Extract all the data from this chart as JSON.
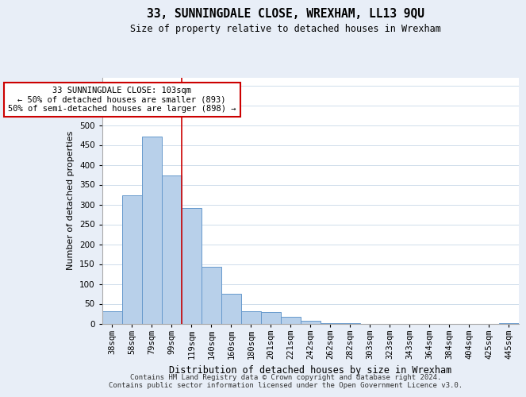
{
  "title": "33, SUNNINGDALE CLOSE, WREXHAM, LL13 9QU",
  "subtitle": "Size of property relative to detached houses in Wrexham",
  "xlabel": "Distribution of detached houses by size in Wrexham",
  "ylabel": "Number of detached properties",
  "bar_labels": [
    "38sqm",
    "58sqm",
    "79sqm",
    "99sqm",
    "119sqm",
    "140sqm",
    "160sqm",
    "180sqm",
    "201sqm",
    "221sqm",
    "242sqm",
    "262sqm",
    "282sqm",
    "303sqm",
    "323sqm",
    "343sqm",
    "364sqm",
    "384sqm",
    "404sqm",
    "425sqm",
    "445sqm"
  ],
  "bar_values": [
    32,
    323,
    472,
    373,
    292,
    144,
    75,
    31,
    29,
    17,
    7,
    2,
    1,
    0,
    0,
    0,
    0,
    0,
    0,
    0,
    2
  ],
  "bar_color": "#b8d0ea",
  "bar_edge_color": "#6699cc",
  "vline_x": 3.5,
  "vline_color": "#cc0000",
  "annotation_text": "33 SUNNINGDALE CLOSE: 103sqm\n← 50% of detached houses are smaller (893)\n50% of semi-detached houses are larger (898) →",
  "annotation_box_edge_color": "#cc0000",
  "ylim": [
    0,
    620
  ],
  "yticks": [
    0,
    50,
    100,
    150,
    200,
    250,
    300,
    350,
    400,
    450,
    500,
    550,
    600
  ],
  "footer_line1": "Contains HM Land Registry data © Crown copyright and database right 2024.",
  "footer_line2": "Contains public sector information licensed under the Open Government Licence v3.0.",
  "bg_color": "#e8eef7",
  "plot_bg_color": "#ffffff",
  "grid_color": "#c8d8e8"
}
